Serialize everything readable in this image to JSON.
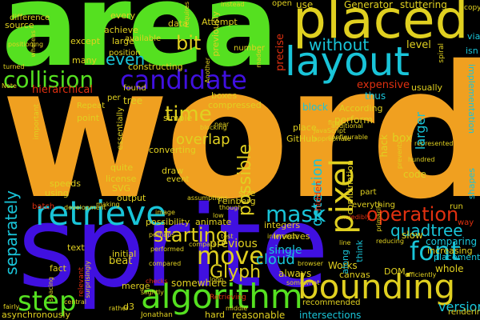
{
  "cloud": {
    "background": "#000000",
    "words": [
      {
        "text": "word",
        "color": "#f0a020"
      },
      {
        "text": "area",
        "color": "#55e020"
      },
      {
        "text": "sprite",
        "color": "#4010e0"
      },
      {
        "text": "placed",
        "color": "#e0d020"
      },
      {
        "text": "layout",
        "color": "#19c4d8"
      },
      {
        "text": "candidate",
        "color": "#4010e0"
      },
      {
        "text": "collision",
        "color": "#55e020"
      },
      {
        "text": "retrieve",
        "color": "#19c4d8"
      },
      {
        "text": "algorithm",
        "color": "#55e020"
      },
      {
        "text": "bounding",
        "color": "#e0d020"
      },
      {
        "text": "step",
        "color": "#55e020"
      },
      {
        "text": "pixel",
        "color": "#e0d020"
      },
      {
        "text": "operation",
        "color": "#e03010"
      },
      {
        "text": "mask",
        "color": "#19c4d8"
      },
      {
        "text": "move",
        "color": "#e0d020"
      },
      {
        "text": "starting",
        "color": "#e0d020"
      },
      {
        "text": "Glyph",
        "color": "#e0d020"
      },
      {
        "text": "time",
        "color": "#e0d020"
      },
      {
        "text": "bit",
        "color": "#e0d020"
      },
      {
        "text": "even",
        "color": "#19c4d8"
      },
      {
        "text": "without",
        "color": "#19c4d8"
      },
      {
        "text": "font",
        "color": "#19c4d8"
      },
      {
        "text": "separately",
        "color": "#19c4d8"
      },
      {
        "text": "overlap",
        "color": "#e0d020"
      },
      {
        "text": "possible",
        "color": "#e0d020"
      },
      {
        "text": "detection",
        "color": "#19c4d8"
      },
      {
        "text": "quadtree",
        "color": "#19c4d8"
      },
      {
        "text": "cloud",
        "color": "#19c4d8"
      },
      {
        "text": "version",
        "color": "#19c4d8"
      },
      {
        "text": "Generator",
        "color": "#e0d020"
      },
      {
        "text": "stuttering",
        "color": "#e0d020"
      },
      {
        "text": "hierarchical",
        "color": "#e03010"
      },
      {
        "text": "expensive",
        "color": "#e03010"
      },
      {
        "text": "larger",
        "color": "#19c4d8"
      },
      {
        "text": "box",
        "color": "#e0d020"
      },
      {
        "text": "level",
        "color": "#e0d020"
      },
      {
        "text": "thus",
        "color": "#19c4d8"
      },
      {
        "text": "block",
        "color": "#19c4d8"
      },
      {
        "text": "perform",
        "color": "#e0d020"
      },
      {
        "text": "previous",
        "color": "#e0d020"
      },
      {
        "text": "single",
        "color": "#19c4d8"
      },
      {
        "text": "beat",
        "color": "#e0d020"
      },
      {
        "text": "merge",
        "color": "#e0d020"
      },
      {
        "text": "always",
        "color": "#e0d020"
      },
      {
        "text": "Works",
        "color": "#e0d020"
      },
      {
        "text": "whole",
        "color": "#e0d020"
      },
      {
        "text": "comparing",
        "color": "#19c4d8"
      },
      {
        "text": "placement",
        "color": "#19c4d8"
      },
      {
        "text": "slow",
        "color": "#e0d020"
      },
      {
        "text": "increasing",
        "color": "#e0d020"
      },
      {
        "text": "reasonable",
        "color": "#e0d020"
      },
      {
        "text": "intersections",
        "color": "#19c4d8"
      },
      {
        "text": "somewhere",
        "color": "#e0d020"
      },
      {
        "text": "asynchronously",
        "color": "#e0d020"
      },
      {
        "text": "SVG",
        "color": "#e0d020"
      },
      {
        "text": "using",
        "color": "#e0d020"
      },
      {
        "text": "output",
        "color": "#e0d020"
      },
      {
        "text": "simple",
        "color": "#e0d020"
      },
      {
        "text": "converting",
        "color": "#e0d020"
      },
      {
        "text": "draw",
        "color": "#e0d020"
      },
      {
        "text": "hidden",
        "color": "#e03010"
      },
      {
        "text": "think",
        "color": "#19c4d8"
      },
      {
        "text": "along",
        "color": "#19c4d8"
      },
      {
        "text": "code",
        "color": "#e0d020"
      },
      {
        "text": "tree",
        "color": "#e0d020"
      },
      {
        "text": "boxes",
        "color": "#e0d020"
      },
      {
        "text": "size",
        "color": "#e0d020"
      },
      {
        "text": "data",
        "color": "#e0d020"
      },
      {
        "text": "every",
        "color": "#e0d020"
      },
      {
        "text": "achieve",
        "color": "#e0d020"
      },
      {
        "text": "large",
        "color": "#e0d020"
      },
      {
        "text": "source",
        "color": "#e0d020"
      },
      {
        "text": "except",
        "color": "#e0d020"
      },
      {
        "text": "Attempt",
        "color": "#e0d020"
      },
      {
        "text": "previously",
        "color": "#e0d020"
      },
      {
        "text": "precise",
        "color": "#e03010"
      },
      {
        "text": "use",
        "color": "#e0d020"
      },
      {
        "text": "via",
        "color": "#19c4d8"
      },
      {
        "text": "isn",
        "color": "#19c4d8"
      },
      {
        "text": "According",
        "color": "#e0d020"
      },
      {
        "text": "GitHub",
        "color": "#e0d020"
      },
      {
        "text": "place",
        "color": "#e0d020"
      },
      {
        "text": "hack",
        "color": "#e0d020"
      },
      {
        "text": "involves",
        "color": "#e0d020"
      },
      {
        "text": "integers",
        "color": "#e0d020"
      },
      {
        "text": "Feinberg",
        "color": "#e0d020"
      },
      {
        "text": "license",
        "color": "#e0d020"
      },
      {
        "text": "speeds",
        "color": "#e0d020"
      },
      {
        "text": "quite",
        "color": "#e0d020"
      },
      {
        "text": "compressed",
        "color": "#e0d020"
      },
      {
        "text": "essentially",
        "color": "#e0d020"
      },
      {
        "text": "implementation",
        "color": "#19c4d8"
      },
      {
        "text": "usually",
        "color": "#e0d020"
      },
      {
        "text": "rendering",
        "color": "#e0d020"
      },
      {
        "text": "DOM",
        "color": "#e0d020"
      },
      {
        "text": "canvas",
        "color": "#e0d020"
      },
      {
        "text": "point",
        "color": "#e0d020"
      },
      {
        "text": "text",
        "color": "#e0d020"
      },
      {
        "text": "fact",
        "color": "#e0d020"
      },
      {
        "text": "initial",
        "color": "#e0d020"
      },
      {
        "text": "d3",
        "color": "#e0d020"
      },
      {
        "text": "hard",
        "color": "#e0d020"
      },
      {
        "text": "recommended",
        "color": "#e0d020"
      },
      {
        "text": "combination",
        "color": "#e0d020"
      },
      {
        "text": "everything",
        "color": "#e0d020"
      },
      {
        "text": "shapes",
        "color": "#19c4d8"
      },
      {
        "text": "animate",
        "color": "#e0d020"
      },
      {
        "text": "possibility",
        "color": "#e0d020"
      },
      {
        "text": "event",
        "color": "#e0d020"
      },
      {
        "text": "many",
        "color": "#e0d020"
      },
      {
        "text": "available",
        "color": "#e0d020"
      },
      {
        "text": "number",
        "color": "#e0d020"
      },
      {
        "text": "position",
        "color": "#e0d020"
      },
      {
        "text": "constructing",
        "color": "#e0d020"
      },
      {
        "text": "Repeat",
        "color": "#e0d020"
      },
      {
        "text": "difference",
        "color": "#e0d020"
      },
      {
        "text": "open",
        "color": "#e0d020"
      },
      {
        "text": "copy",
        "color": "#e0d020"
      },
      {
        "text": "spiral",
        "color": "#e0d020"
      },
      {
        "text": "part",
        "color": "#e0d020"
      },
      {
        "text": "run",
        "color": "#e0d020"
      },
      {
        "text": "way",
        "color": "#e03010"
      },
      {
        "text": "found",
        "color": "#e0d020"
      },
      {
        "text": "per",
        "color": "#e0d020"
      },
      {
        "text": "important",
        "color": "#e0d020"
      },
      {
        "text": "instead",
        "color": "#e0d020"
      },
      {
        "text": "requires",
        "color": "#e0d020"
      },
      {
        "text": "Another",
        "color": "#e0d020"
      },
      {
        "text": "made",
        "color": "#e0d020"
      },
      {
        "text": "positioning",
        "color": "#e0d020"
      },
      {
        "text": "whereas",
        "color": "#e0d020"
      },
      {
        "text": "turned",
        "color": "#e0d020"
      },
      {
        "text": "Note",
        "color": "#e0d020"
      },
      {
        "text": "spacing",
        "color": "#e0d020"
      },
      {
        "text": "batch",
        "color": "#e0d020"
      },
      {
        "text": "making",
        "color": "#e0d020"
      },
      {
        "text": "surprisingly",
        "color": "#e0d020"
      },
      {
        "text": "checks",
        "color": "#e03010"
      },
      {
        "text": "Retrieving",
        "color": "#e0d020"
      },
      {
        "text": "Jonathan",
        "color": "#e0d020"
      },
      {
        "text": "rather",
        "color": "#e03010"
      },
      {
        "text": "central",
        "color": "#e03010"
      },
      {
        "text": "relevant",
        "color": "#e0d020"
      },
      {
        "text": "loop",
        "color": "#e0d020"
      },
      {
        "text": "somewhat",
        "color": "#e0d020"
      },
      {
        "text": "intersects",
        "color": "#e03010"
      },
      {
        "text": "efficiently",
        "color": "#e0d020"
      },
      {
        "text": "reducing",
        "color": "#e0d020"
      },
      {
        "text": "incredibly",
        "color": "#e0d020"
      },
      {
        "text": "primarily",
        "color": "#e0d020"
      },
      {
        "text": "JavaScript",
        "color": "#e0d020"
      },
      {
        "text": "appropriate",
        "color": "#e03010"
      },
      {
        "text": "configurable",
        "color": "#e0d020"
      },
      {
        "text": "represented",
        "color": "#e0d020"
      },
      {
        "text": "hundred",
        "color": "#e0d020"
      },
      {
        "text": "prevents",
        "color": "#e0d020"
      },
      {
        "text": "final",
        "color": "#e0d020"
      },
      {
        "text": "additional",
        "color": "#e0d020"
      },
      {
        "text": "blocking",
        "color": "#e0d020"
      },
      {
        "text": "development",
        "color": "#e0d020"
      },
      {
        "text": "compared",
        "color": "#e0d020"
      },
      {
        "text": "performed",
        "color": "#e0d020"
      },
      {
        "text": "middle",
        "color": "#e0d020"
      },
      {
        "text": "slightly",
        "color": "#e0d020"
      },
      {
        "text": "fairly",
        "color": "#e0d020"
      },
      {
        "text": "browser",
        "color": "#e0d020"
      },
      {
        "text": "assumptions",
        "color": "#e0d020"
      },
      {
        "text": "though",
        "color": "#e0d020"
      },
      {
        "text": "low",
        "color": "#e0d020"
      },
      {
        "text": "line",
        "color": "#e0d020"
      },
      {
        "text": "perhaps",
        "color": "#e0d020"
      },
      {
        "text": "compare",
        "color": "#e0d020"
      },
      {
        "text": "test",
        "color": "#e0d020"
      },
      {
        "text": "image",
        "color": "#e0d020"
      },
      {
        "text": "near",
        "color": "#e0d020"
      },
      {
        "text": "tried",
        "color": "#e0d020"
      },
      {
        "text": "edit",
        "color": "#e0d020"
      },
      {
        "text": "greedy",
        "color": "#e0d020"
      }
    ]
  }
}
